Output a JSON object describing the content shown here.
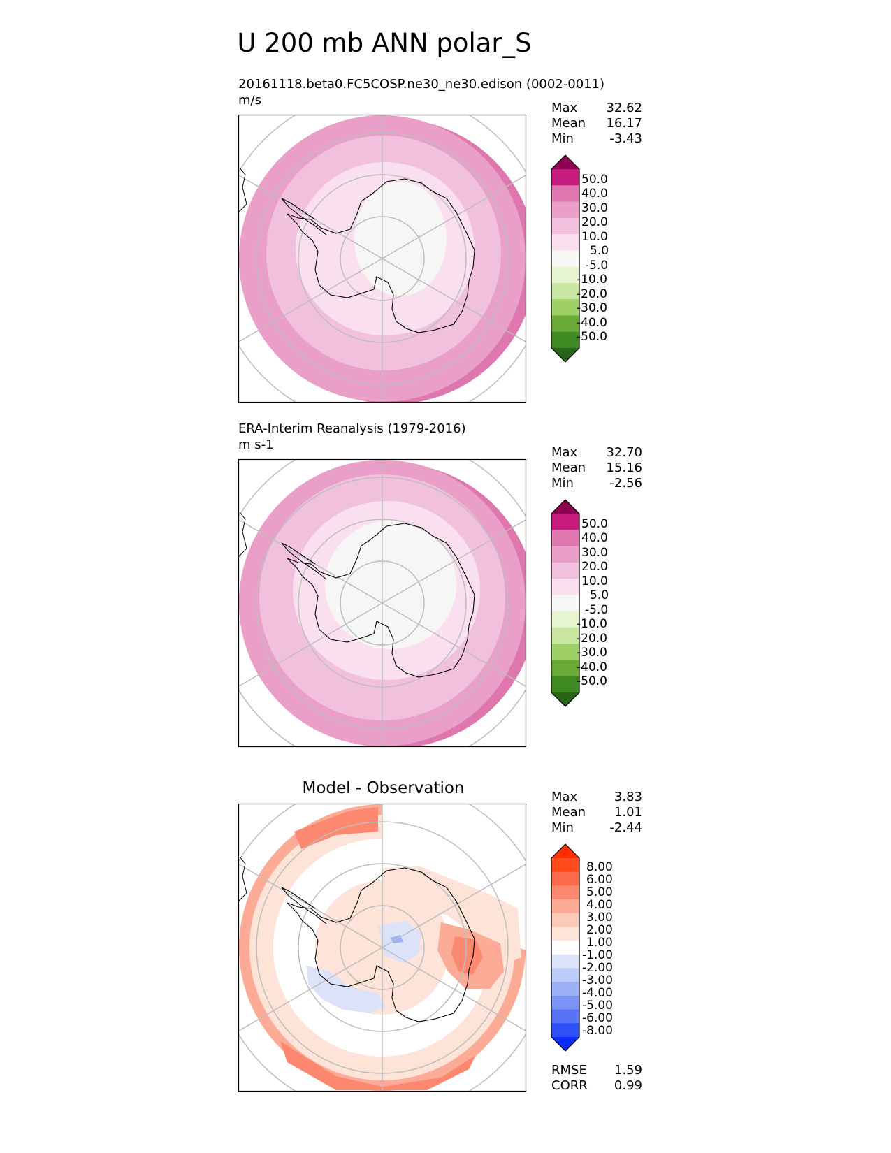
{
  "title": "U 200 mb ANN polar_S",
  "panels": [
    {
      "heading": "20161118.beta0.FC5COSP.ne30_ne30.edison (0002-0011)",
      "units": "m/s",
      "stats": [
        {
          "label": "Max",
          "value": "32.62"
        },
        {
          "label": "Mean",
          "value": "16.17"
        },
        {
          "label": "Min",
          "value": "-3.43"
        }
      ]
    },
    {
      "heading": "ERA-Interim Reanalysis (1979-2016)",
      "units": "m s-1",
      "stats": [
        {
          "label": "Max",
          "value": "32.70"
        },
        {
          "label": "Mean",
          "value": "15.16"
        },
        {
          "label": "Min",
          "value": "-2.56"
        }
      ]
    },
    {
      "heading": "Model - Observation",
      "stats": [
        {
          "label": "Max",
          "value": "3.83"
        },
        {
          "label": "Mean",
          "value": "1.01"
        },
        {
          "label": "Min",
          "value": "-2.44"
        }
      ],
      "metrics": [
        {
          "label": "RMSE",
          "value": "1.59"
        },
        {
          "label": "CORR",
          "value": "0.99"
        }
      ]
    }
  ],
  "colorbars": {
    "field": {
      "ticks": [
        "50.0",
        "40.0",
        "30.0",
        "20.0",
        "10.0",
        "5.0",
        "-5.0",
        "-10.0",
        "-20.0",
        "-30.0",
        "-40.0",
        "-50.0"
      ],
      "colors": [
        "#8e0152",
        "#c51b7d",
        "#de77ae",
        "#e99fc8",
        "#f1c0dd",
        "#fae0ee",
        "#f6f6f4",
        "#e7f4d2",
        "#c9e7a3",
        "#9fd068",
        "#6aab37",
        "#3f8a22",
        "#276419"
      ]
    },
    "diff": {
      "ticks": [
        "8.00",
        "6.00",
        "5.00",
        "4.00",
        "3.00",
        "2.00",
        "1.00",
        "-1.00",
        "-2.00",
        "-3.00",
        "-4.00",
        "-5.00",
        "-6.00",
        "-8.00"
      ],
      "colors": [
        "#ff2d00",
        "#ff4a1c",
        "#fb6a4a",
        "#fc8870",
        "#fcab96",
        "#fdc9b8",
        "#fde3d8",
        "#ffffff",
        "#dce2f8",
        "#bccbf7",
        "#9cb0f6",
        "#7b93f5",
        "#5873f5",
        "#3050f8",
        "#0a2cfc"
      ]
    }
  },
  "chart_data": [
    {
      "type": "heatmap",
      "title": "20161118.beta0.FC5COSP.ne30_ne30.edison (0002-0011)",
      "variable": "U 200 mb",
      "units": "m/s",
      "projection": "south polar stereographic",
      "max": 32.62,
      "mean": 16.17,
      "min": -3.43,
      "levels": [
        -50,
        -40,
        -30,
        -20,
        -10,
        -5,
        5,
        10,
        20,
        30,
        40,
        50
      ]
    },
    {
      "type": "heatmap",
      "title": "ERA-Interim Reanalysis (1979-2016)",
      "variable": "U 200 mb",
      "units": "m s-1",
      "projection": "south polar stereographic",
      "max": 32.7,
      "mean": 15.16,
      "min": -2.56,
      "levels": [
        -50,
        -40,
        -30,
        -20,
        -10,
        -5,
        5,
        10,
        20,
        30,
        40,
        50
      ]
    },
    {
      "type": "heatmap",
      "title": "Model - Observation",
      "variable": "U 200 mb difference",
      "projection": "south polar stereographic",
      "max": 3.83,
      "mean": 1.01,
      "min": -2.44,
      "rmse": 1.59,
      "corr": 0.99,
      "levels": [
        -8,
        -6,
        -5,
        -4,
        -3,
        -2,
        -1,
        1,
        2,
        3,
        4,
        5,
        6,
        8
      ]
    }
  ]
}
